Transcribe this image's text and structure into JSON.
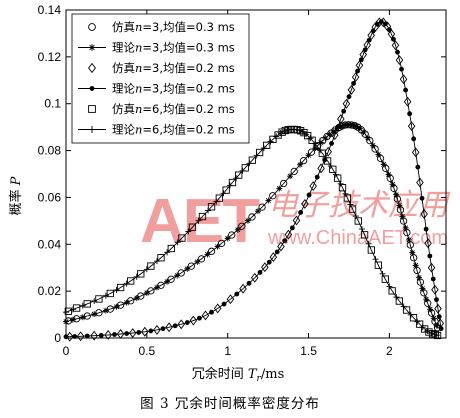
{
  "figure": {
    "caption": "图 3   冗余时间概率密度分布"
  },
  "watermark": {
    "logo": "AET",
    "chinese": "电子技术应用",
    "url": "www.ChinaAET.com",
    "color": "#f2a6a6"
  },
  "chart_data": {
    "type": "line",
    "title": "",
    "xlabel_main": "冗余时间 ",
    "xlabel_var": "T",
    "xlabel_sub": "r",
    "xlabel_unit": "/ms",
    "ylabel_main": "概率 ",
    "ylabel_var": "P",
    "xlim": [
      0,
      2.35
    ],
    "ylim": [
      0,
      0.14
    ],
    "xticks": [
      0,
      0.5,
      1,
      1.5,
      2
    ],
    "xtick_labels": [
      "0",
      "0.5",
      "1",
      "1.5",
      "2"
    ],
    "yticks": [
      0,
      0.02,
      0.04,
      0.06,
      0.08,
      0.1,
      0.12,
      0.14
    ],
    "ytick_labels": [
      "0",
      "0.02",
      "0.04",
      "0.06",
      "0.08",
      "0.1",
      "0.12",
      "0.14"
    ],
    "grid": false,
    "legend_position": "top-left",
    "series": [
      {
        "name": "仿真n=3,均值=0.3 ms",
        "label_pre": "仿真",
        "label_var": "n",
        "label_post": "=3,均值=0.3 ms",
        "marker": "circle",
        "line": false,
        "x": [
          0,
          0.3,
          0.6,
          0.9,
          1.2,
          1.5,
          1.65,
          1.75,
          1.85,
          2.0,
          2.1,
          2.2,
          2.3
        ],
        "y": [
          0.007,
          0.013,
          0.023,
          0.037,
          0.055,
          0.078,
          0.088,
          0.091,
          0.087,
          0.069,
          0.047,
          0.022,
          0.004
        ]
      },
      {
        "name": "理论n=3,均值=0.3 ms",
        "label_pre": "理论",
        "label_var": "n",
        "label_post": "=3,均值=0.3 ms",
        "marker": "asterisk",
        "line": true,
        "x": [
          0,
          0.3,
          0.6,
          0.9,
          1.2,
          1.5,
          1.65,
          1.75,
          1.85,
          2.0,
          2.1,
          2.2,
          2.3
        ],
        "y": [
          0.007,
          0.013,
          0.023,
          0.037,
          0.055,
          0.078,
          0.088,
          0.091,
          0.087,
          0.069,
          0.047,
          0.022,
          0.004
        ]
      },
      {
        "name": "仿真n=3,均值=0.2 ms",
        "label_pre": "仿真",
        "label_var": "n",
        "label_post": "=3,均值=0.2 ms",
        "marker": "diamond",
        "line": false,
        "x": [
          0,
          0.3,
          0.6,
          0.9,
          1.2,
          1.4,
          1.6,
          1.75,
          1.85,
          1.95,
          2.05,
          2.15,
          2.25,
          2.32
        ],
        "y": [
          0.0005,
          0.0015,
          0.004,
          0.011,
          0.028,
          0.047,
          0.076,
          0.103,
          0.123,
          0.135,
          0.122,
          0.085,
          0.035,
          0.004
        ]
      },
      {
        "name": "理论n=3,均值=0.2 ms",
        "label_pre": "理论",
        "label_var": "n",
        "label_post": "=3,均值=0.2 ms",
        "marker": "dot",
        "line": true,
        "x": [
          0,
          0.3,
          0.6,
          0.9,
          1.2,
          1.4,
          1.6,
          1.75,
          1.85,
          1.95,
          2.05,
          2.15,
          2.25,
          2.32
        ],
        "y": [
          0.0005,
          0.0015,
          0.004,
          0.011,
          0.028,
          0.047,
          0.076,
          0.103,
          0.123,
          0.135,
          0.122,
          0.085,
          0.035,
          0.004
        ]
      },
      {
        "name": "仿真n=6,均值=0.2 ms",
        "label_pre": "仿真",
        "label_var": "n",
        "label_post": "=6,均值=0.2 ms",
        "marker": "square",
        "line": false,
        "x": [
          0,
          0.3,
          0.6,
          0.9,
          1.1,
          1.3,
          1.4,
          1.5,
          1.65,
          1.8,
          2.0,
          2.2,
          2.3
        ],
        "y": [
          0.011,
          0.02,
          0.035,
          0.056,
          0.072,
          0.086,
          0.089,
          0.086,
          0.072,
          0.051,
          0.022,
          0.005,
          0.001
        ]
      },
      {
        "name": "理论n=6,均值=0.2 ms",
        "label_pre": "理论",
        "label_var": "n",
        "label_post": "=6,均值=0.2 ms",
        "marker": "plus",
        "line": true,
        "x": [
          0,
          0.3,
          0.6,
          0.9,
          1.1,
          1.3,
          1.4,
          1.5,
          1.65,
          1.8,
          2.0,
          2.2,
          2.3
        ],
        "y": [
          0.011,
          0.02,
          0.035,
          0.056,
          0.072,
          0.086,
          0.089,
          0.086,
          0.072,
          0.051,
          0.022,
          0.005,
          0.001
        ]
      }
    ]
  }
}
